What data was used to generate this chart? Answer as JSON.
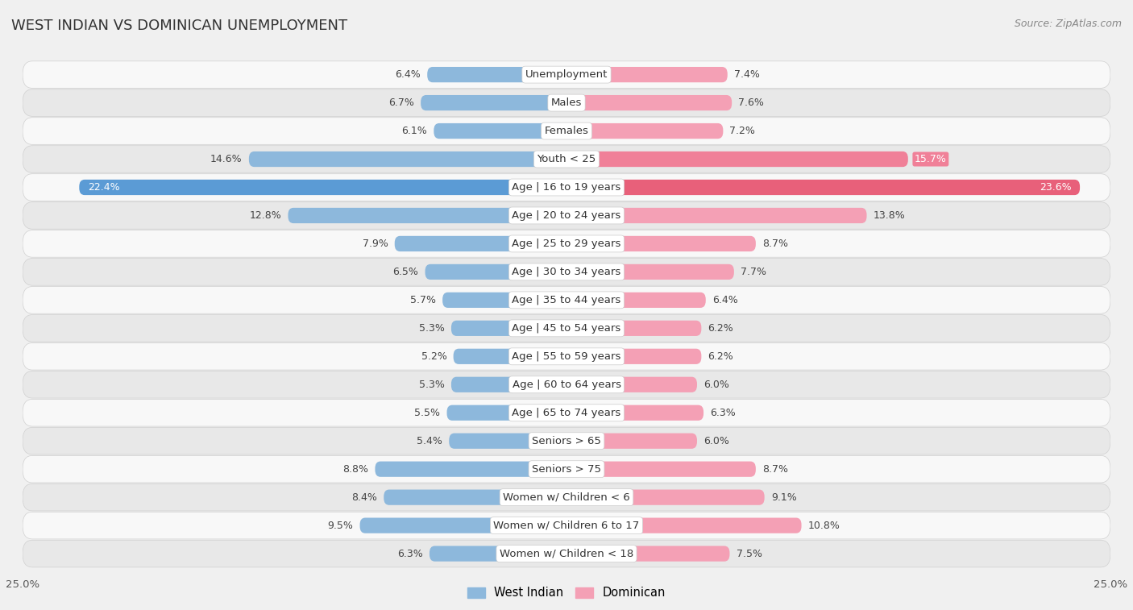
{
  "title": "WEST INDIAN VS DOMINICAN UNEMPLOYMENT",
  "source": "Source: ZipAtlas.com",
  "categories": [
    "Unemployment",
    "Males",
    "Females",
    "Youth < 25",
    "Age | 16 to 19 years",
    "Age | 20 to 24 years",
    "Age | 25 to 29 years",
    "Age | 30 to 34 years",
    "Age | 35 to 44 years",
    "Age | 45 to 54 years",
    "Age | 55 to 59 years",
    "Age | 60 to 64 years",
    "Age | 65 to 74 years",
    "Seniors > 65",
    "Seniors > 75",
    "Women w/ Children < 6",
    "Women w/ Children 6 to 17",
    "Women w/ Children < 18"
  ],
  "west_indian": [
    6.4,
    6.7,
    6.1,
    14.6,
    22.4,
    12.8,
    7.9,
    6.5,
    5.7,
    5.3,
    5.2,
    5.3,
    5.5,
    5.4,
    8.8,
    8.4,
    9.5,
    6.3
  ],
  "dominican": [
    7.4,
    7.6,
    7.2,
    15.7,
    23.6,
    13.8,
    8.7,
    7.7,
    6.4,
    6.2,
    6.2,
    6.0,
    6.3,
    6.0,
    8.7,
    9.1,
    10.8,
    7.5
  ],
  "west_indian_color": "#8db8dc",
  "dominican_color": "#f4a0b5",
  "west_indian_highlight_color": "#5b9bd5",
  "dominican_highlight_color": "#e8607a",
  "youth_wi_color": "#8db8dc",
  "youth_dom_color": "#f08098",
  "bg_color": "#f0f0f0",
  "row_bg_light": "#f8f8f8",
  "row_bg_dark": "#e8e8e8",
  "row_border_color": "#d0d0d0",
  "axis_max": 25.0,
  "bar_height": 0.55,
  "label_fontsize": 9.5,
  "title_fontsize": 13,
  "source_fontsize": 9,
  "value_fontsize": 9
}
